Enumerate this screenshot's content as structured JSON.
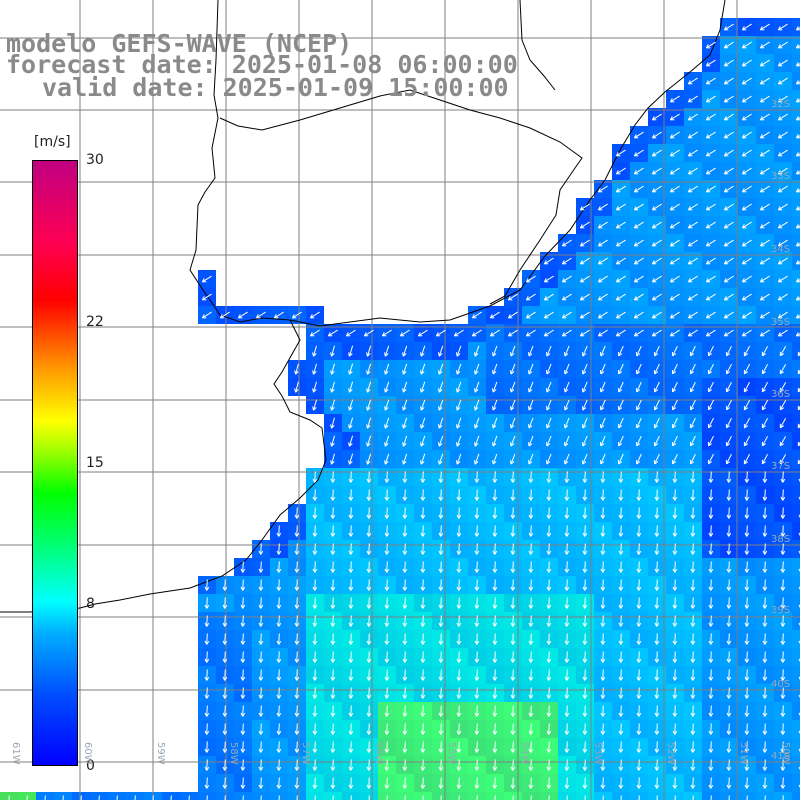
{
  "title": {
    "line1": "modelo GEFS-WAVE (NCEP)",
    "line2": "forecast date: 2025-01-08 06:00:00",
    "line3": "valid date: 2025-01-09 15:00:00"
  },
  "colorbar": {
    "unit": "[m/s]",
    "ticks": [
      {
        "value": 30,
        "label": "30"
      },
      {
        "value": 22,
        "label": "22"
      },
      {
        "value": 15,
        "label": "15"
      },
      {
        "value": 8,
        "label": "8"
      },
      {
        "value": 0,
        "label": "0"
      }
    ]
  },
  "map": {
    "variable": "wind speed and direction",
    "latitude_labels": [
      "32S",
      "33S",
      "34S",
      "35S",
      "36S",
      "37S",
      "38S",
      "39S",
      "40S",
      "41S"
    ],
    "longitude_labels": [
      "61W",
      "60W",
      "59W",
      "58W",
      "57W",
      "56W",
      "55W",
      "54W",
      "53W",
      "52W",
      "51W",
      "50W"
    ],
    "land_color": "#ffffff",
    "coast_color": "#000000",
    "grid_color": "#7f7f7f",
    "arrow_color": "#ffffff"
  }
}
